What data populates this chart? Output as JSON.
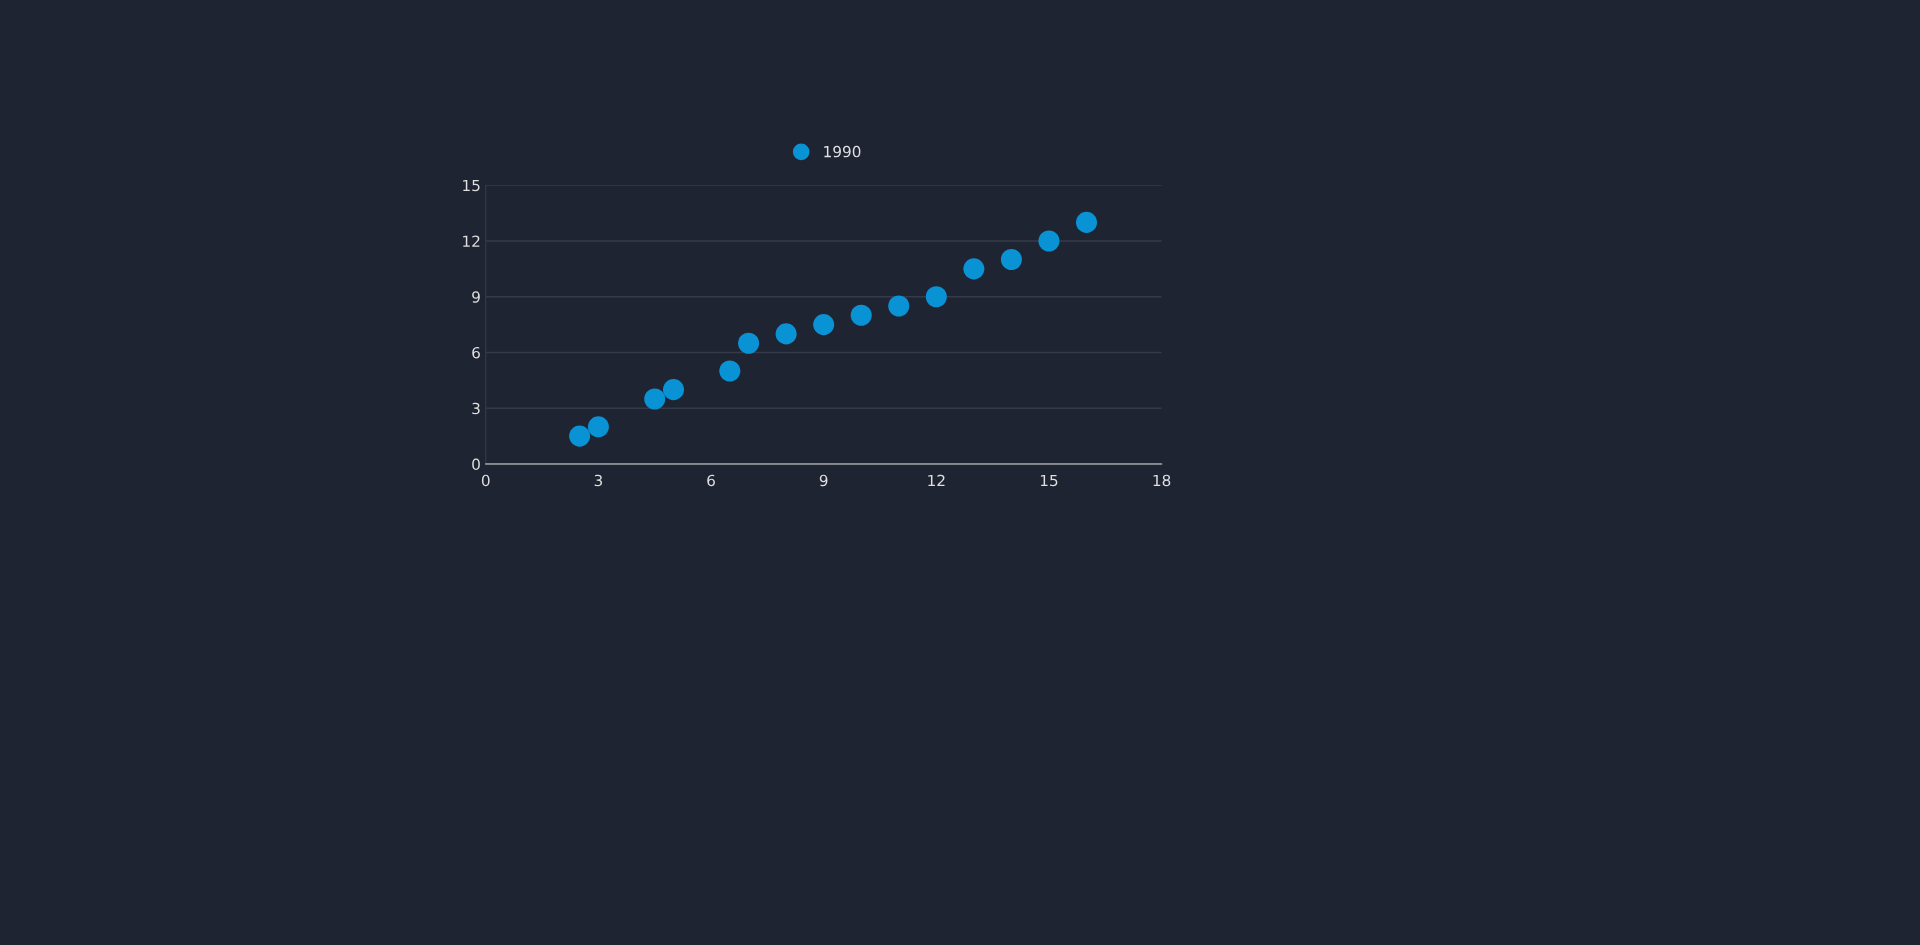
{
  "chart_data": {
    "type": "scatter",
    "series": [
      {
        "name": "1990",
        "color": "#0a93d4",
        "x": [
          2.5,
          3,
          4.5,
          5,
          6.5,
          7,
          8,
          9,
          10,
          11,
          12,
          13,
          14,
          15,
          16
        ],
        "values": [
          1.5,
          2,
          3.5,
          4,
          5,
          6.5,
          7,
          7.5,
          8,
          8.5,
          9,
          10.5,
          11,
          12,
          13
        ]
      }
    ],
    "xlim": [
      0,
      18
    ],
    "xticks": [
      0,
      3,
      6,
      9,
      12,
      15,
      18
    ],
    "ylim": [
      0,
      15
    ],
    "yticks": [
      0,
      3,
      6,
      9,
      12,
      15
    ],
    "grid": "y",
    "legend": "top",
    "marker": "circle"
  }
}
